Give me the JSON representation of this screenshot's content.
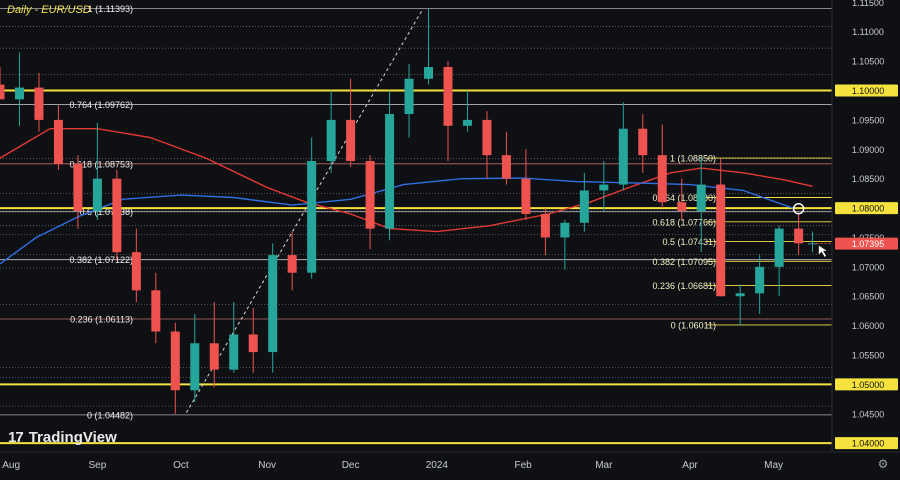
{
  "chart_data": {
    "type": "candlestick",
    "title": "Daily - EUR/USD",
    "ylim": [
      1.0385,
      1.1154
    ],
    "x_range": [
      "2023-07-28",
      "2024-05-22"
    ],
    "current_price": "1.07395",
    "axis_ticks": [
      "1.11500",
      "1.11000",
      "1.10500",
      "1.10000",
      "1.09500",
      "1.09000",
      "1.08500",
      "1.08000",
      "1.07500",
      "1.07000",
      "1.06500",
      "1.06000",
      "1.05500",
      "1.05000",
      "1.04500",
      "1.04000"
    ],
    "highlighted_levels": [
      1.1,
      1.08,
      1.05,
      1.04
    ],
    "x_labels": [
      {
        "label": "Aug",
        "date": "2023-08-01"
      },
      {
        "label": "Sep",
        "date": "2023-09-01"
      },
      {
        "label": "Oct",
        "date": "2023-10-01"
      },
      {
        "label": "Nov",
        "date": "2023-11-01"
      },
      {
        "label": "Dec",
        "date": "2023-12-01"
      },
      {
        "label": "2024",
        "date": "2024-01-01"
      },
      {
        "label": "Feb",
        "date": "2024-02-01"
      },
      {
        "label": "Mar",
        "date": "2024-03-01"
      },
      {
        "label": "Apr",
        "date": "2024-04-01"
      },
      {
        "label": "May",
        "date": "2024-05-01"
      }
    ],
    "fib_long": [
      {
        "label": "1 (1.11393)",
        "value": 1.11393
      },
      {
        "label": "0.764 (1.09762)",
        "value": 1.09762
      },
      {
        "label": "0.618 (1.08753)",
        "value": 1.08753
      },
      {
        "label": "0.5 (1.07938)",
        "value": 1.07938
      },
      {
        "label": "0.382 (1.07122)",
        "value": 1.07122
      },
      {
        "label": "0.236 (1.06113)",
        "value": 1.06113
      },
      {
        "label": "0 (1.04482)",
        "value": 1.04482
      }
    ],
    "fib_short": [
      {
        "label": "1 (1.08850)",
        "value": 1.0885
      },
      {
        "label": "0.764 (1.08180)",
        "value": 1.0818
      },
      {
        "label": "0.618 (1.07766)",
        "value": 1.07766
      },
      {
        "label": "0.5 (1.07431)",
        "value": 1.07431
      },
      {
        "label": "0.382 (1.07095)",
        "value": 1.07095
      },
      {
        "label": "0.236 (1.06681)",
        "value": 1.06681
      },
      {
        "label": "0 (1.06011)",
        "value": 1.06011
      }
    ],
    "dotted_levels": [
      1.1109,
      1.1072,
      1.1027,
      1.0976,
      1.0884,
      1.0825,
      1.0795,
      1.077,
      1.0755,
      1.0721,
      1.0698,
      1.0636,
      1.0529,
      1.0512,
      1.0463
    ],
    "ma_red": [
      [
        "2023-07-28",
        1.0885
      ],
      [
        "2023-08-15",
        1.0935
      ],
      [
        "2023-09-01",
        1.0935
      ],
      [
        "2023-09-20",
        1.092
      ],
      [
        "2023-10-10",
        1.0885
      ],
      [
        "2023-11-01",
        1.0835
      ],
      [
        "2023-11-15",
        1.081
      ],
      [
        "2023-12-01",
        1.079
      ],
      [
        "2023-12-15",
        1.0765
      ],
      [
        "2024-01-01",
        1.076
      ],
      [
        "2024-01-20",
        1.077
      ],
      [
        "2024-02-10",
        1.079
      ],
      [
        "2024-02-25",
        1.081
      ],
      [
        "2024-03-10",
        1.0835
      ],
      [
        "2024-03-25",
        1.086
      ],
      [
        "2024-04-05",
        1.0868
      ],
      [
        "2024-04-20",
        1.086
      ],
      [
        "2024-05-05",
        1.0848
      ],
      [
        "2024-05-15",
        1.0837
      ]
    ],
    "ma_blue": [
      [
        "2023-07-28",
        1.0705
      ],
      [
        "2023-08-10",
        1.075
      ],
      [
        "2023-08-25",
        1.0785
      ],
      [
        "2023-09-10",
        1.0815
      ],
      [
        "2023-10-01",
        1.0822
      ],
      [
        "2023-10-20",
        1.0818
      ],
      [
        "2023-11-10",
        1.0805
      ],
      [
        "2023-12-01",
        1.0815
      ],
      [
        "2023-12-20",
        1.084
      ],
      [
        "2024-01-10",
        1.085
      ],
      [
        "2024-02-01",
        1.0851
      ],
      [
        "2024-02-20",
        1.0845
      ],
      [
        "2024-03-10",
        1.0843
      ],
      [
        "2024-04-01",
        1.084
      ],
      [
        "2024-04-20",
        1.083
      ],
      [
        "2024-05-08",
        1.08
      ]
    ],
    "trendline": [
      [
        "2023-10-03",
        1.0452
      ],
      [
        "2023-12-27",
        1.1139
      ]
    ],
    "candles": [
      [
        "2023-07-28",
        1.101,
        1.104,
        1.099,
        1.0985
      ],
      [
        "2023-08-04",
        1.0985,
        1.1065,
        1.094,
        1.1005
      ],
      [
        "2023-08-11",
        1.1005,
        1.103,
        1.093,
        1.095
      ],
      [
        "2023-08-18",
        1.095,
        1.0975,
        1.0865,
        1.0875
      ],
      [
        "2023-08-25",
        1.0875,
        1.089,
        1.0765,
        1.0795
      ],
      [
        "2023-09-01",
        1.0795,
        1.0945,
        1.078,
        1.085
      ],
      [
        "2023-09-08",
        1.085,
        1.0865,
        1.071,
        1.0725
      ],
      [
        "2023-09-15",
        1.0725,
        1.0765,
        1.064,
        1.066
      ],
      [
        "2023-09-22",
        1.066,
        1.069,
        1.057,
        1.059
      ],
      [
        "2023-09-29",
        1.059,
        1.0605,
        1.045,
        1.049
      ],
      [
        "2023-10-06",
        1.049,
        1.062,
        1.047,
        1.057
      ],
      [
        "2023-10-13",
        1.057,
        1.064,
        1.0495,
        1.0525
      ],
      [
        "2023-10-20",
        1.0525,
        1.064,
        1.052,
        1.0585
      ],
      [
        "2023-10-27",
        1.0585,
        1.063,
        1.052,
        1.0555
      ],
      [
        "2023-11-03",
        1.0555,
        1.074,
        1.052,
        1.072
      ],
      [
        "2023-11-10",
        1.072,
        1.076,
        1.066,
        1.069
      ],
      [
        "2023-11-17",
        1.069,
        1.092,
        1.068,
        1.088
      ],
      [
        "2023-11-24",
        1.088,
        1.1,
        1.086,
        1.095
      ],
      [
        "2023-12-01",
        1.095,
        1.102,
        1.087,
        1.088
      ],
      [
        "2023-12-08",
        1.088,
        1.089,
        1.073,
        1.0765
      ],
      [
        "2023-12-15",
        1.0765,
        1.1,
        1.0745,
        1.096
      ],
      [
        "2023-12-22",
        1.096,
        1.1045,
        1.092,
        1.102
      ],
      [
        "2023-12-29",
        1.102,
        1.1139,
        1.101,
        1.104
      ],
      [
        "2024-01-05",
        1.104,
        1.105,
        1.088,
        1.094
      ],
      [
        "2024-01-12",
        1.094,
        1.1,
        1.093,
        1.095
      ],
      [
        "2024-01-19",
        1.095,
        1.0965,
        1.085,
        1.089
      ],
      [
        "2024-01-26",
        1.089,
        1.093,
        1.084,
        1.085
      ],
      [
        "2024-02-02",
        1.085,
        1.09,
        1.078,
        1.079
      ],
      [
        "2024-02-09",
        1.079,
        1.08,
        1.072,
        1.075
      ],
      [
        "2024-02-16",
        1.075,
        1.078,
        1.0695,
        1.0775
      ],
      [
        "2024-02-23",
        1.0775,
        1.086,
        1.076,
        1.083
      ],
      [
        "2024-03-01",
        1.083,
        1.088,
        1.0795,
        1.084
      ],
      [
        "2024-03-08",
        1.084,
        1.098,
        1.083,
        1.0935
      ],
      [
        "2024-03-15",
        1.0935,
        1.096,
        1.086,
        1.089
      ],
      [
        "2024-03-22",
        1.089,
        1.0942,
        1.08,
        1.081
      ],
      [
        "2024-03-29",
        1.081,
        1.085,
        1.078,
        1.0795
      ],
      [
        "2024-04-05",
        1.0795,
        1.0885,
        1.0725,
        1.084
      ],
      [
        "2024-04-12",
        1.084,
        1.0885,
        1.065,
        1.065
      ],
      [
        "2024-04-19",
        1.065,
        1.067,
        1.0601,
        1.0655
      ],
      [
        "2024-04-26",
        1.0655,
        1.072,
        1.062,
        1.07
      ],
      [
        "2024-05-03",
        1.07,
        1.077,
        1.065,
        1.0765
      ],
      [
        "2024-05-10",
        1.0765,
        1.0792,
        1.072,
        1.074
      ],
      [
        "2024-05-15",
        1.074,
        1.076,
        1.0725,
        1.074
      ]
    ]
  },
  "logo_text": "TradingView",
  "colors": {
    "up": "#26a69a",
    "down": "#ef5350",
    "ma_red": "#e53935",
    "ma_blue": "#2f6fe0",
    "fib_line": "#f2e04a",
    "fib_text": "#f5f0c8",
    "price_tag": "#ef5350",
    "level_tag": "#f5e23c"
  }
}
